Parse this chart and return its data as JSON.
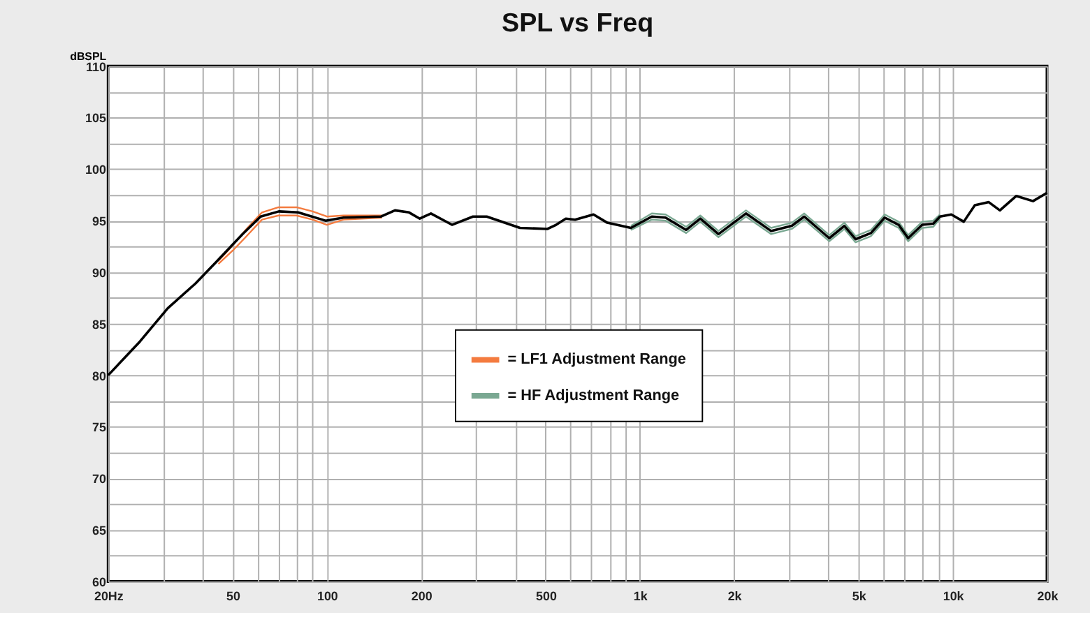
{
  "chart_data": {
    "type": "line",
    "title": "SPL vs Freq",
    "ylabel": "dBSPL",
    "xlim": [
      20,
      20000
    ],
    "ylim": [
      60,
      110
    ],
    "log": "x",
    "grid": true,
    "legend": "center",
    "line_style": "solid",
    "marker": "none",
    "xticks": [
      {
        "value": 20,
        "label": "20Hz"
      },
      {
        "value": 30,
        "label": null
      },
      {
        "value": 40,
        "label": null
      },
      50,
      {
        "value": 60,
        "label": null
      },
      {
        "value": 70,
        "label": null
      },
      {
        "value": 80,
        "label": null
      },
      {
        "value": 90,
        "label": null
      },
      100,
      200,
      {
        "value": 300,
        "label": null
      },
      {
        "value": 400,
        "label": null
      },
      500,
      {
        "value": 600,
        "label": null
      },
      {
        "value": 700,
        "label": null
      },
      {
        "value": 800,
        "label": null
      },
      {
        "value": 900,
        "label": null
      },
      {
        "value": 1000,
        "label": "1k"
      },
      {
        "value": 2000,
        "label": "2k"
      },
      {
        "value": 3000,
        "label": null
      },
      {
        "value": 4000,
        "label": null
      },
      {
        "value": 5000,
        "label": "5k"
      },
      {
        "value": 6000,
        "label": null
      },
      {
        "value": 7000,
        "label": null
      },
      {
        "value": 8000,
        "label": null
      },
      {
        "value": 9000,
        "label": null
      },
      {
        "value": 10000,
        "label": "10k"
      },
      {
        "value": 20000,
        "label": "20k"
      }
    ],
    "yticks": [
      60,
      {
        "value": 62.5,
        "label": null
      },
      65,
      {
        "value": 67.5,
        "label": null
      },
      70,
      {
        "value": 72.5,
        "label": null
      },
      75,
      {
        "value": 77.5,
        "label": null
      },
      80,
      {
        "value": 82.5,
        "label": null
      },
      85,
      {
        "value": 87.5,
        "label": null
      },
      90,
      {
        "value": 92.5,
        "label": null
      },
      95,
      {
        "value": 97.5,
        "label": null
      },
      100,
      {
        "value": 102.5,
        "label": null
      },
      105,
      {
        "value": 107.5,
        "label": null
      },
      110
    ],
    "series": [
      {
        "name": "= LF1 Adjustment Range",
        "color": "#f47b3f",
        "x": [
          45,
          50,
          55,
          62,
          70,
          80,
          90,
          100,
          113,
          150
        ],
        "values": [
          91.1,
          92.6,
          94.1,
          95.8,
          96.3,
          96.3,
          95.9,
          95.4,
          95.5,
          95.5
        ]
      },
      {
        "color": "#f47b3f",
        "x": [
          45,
          50,
          55,
          62,
          70,
          80,
          90,
          100,
          113,
          150
        ],
        "values": [
          90.8,
          92.1,
          93.4,
          95.1,
          95.5,
          95.5,
          95.1,
          94.6,
          95.1,
          95.3
        ]
      },
      {
        "name": "= HF Adjustment Range",
        "color": "#7aa892",
        "x": [
          936,
          1092,
          1208,
          1406,
          1560,
          1783,
          2183,
          2625,
          3058,
          3352,
          4030,
          4502,
          4890,
          5474,
          6058,
          6711,
          7200,
          7985,
          8660,
          9100
        ],
        "values": [
          94.5,
          95.7,
          95.6,
          94.4,
          95.5,
          94.0,
          96.0,
          94.3,
          94.8,
          95.7,
          93.6,
          94.8,
          93.5,
          94.1,
          95.6,
          94.9,
          93.6,
          94.9,
          95.0,
          95.6
        ]
      },
      {
        "color": "#7aa892",
        "x": [
          936,
          1092,
          1208,
          1406,
          1560,
          1783,
          2183,
          2625,
          3058,
          3352,
          4030,
          4502,
          4890,
          5474,
          6058,
          6711,
          7200,
          7985,
          8660,
          9100
        ],
        "values": [
          94.1,
          95.1,
          95.0,
          93.8,
          94.9,
          93.4,
          95.4,
          93.7,
          94.2,
          95.1,
          93.0,
          94.2,
          92.9,
          93.5,
          95.0,
          94.3,
          93.0,
          94.3,
          94.4,
          95.2
        ]
      },
      {
        "color": "#000000",
        "x": [
          20,
          25.3,
          31,
          38,
          44.3,
          53.8,
          61.4,
          70.2,
          80.9,
          99,
          113,
          149,
          165,
          183,
          198,
          215,
          251,
          293,
          324,
          414,
          507,
          540,
          580,
          621,
          711,
          787,
          936,
          1092,
          1208,
          1406,
          1560,
          1783,
          2183,
          2625,
          3058,
          3352,
          4030,
          4502,
          4890,
          5474,
          6058,
          6711,
          7200,
          7985,
          8660,
          9100,
          9890,
          10840,
          11760,
          13030,
          14140,
          15960,
          18040,
          20000
        ],
        "values": [
          80.0,
          83.3,
          86.5,
          88.9,
          91.0,
          93.7,
          95.4,
          95.9,
          95.8,
          95.0,
          95.3,
          95.4,
          96.0,
          95.8,
          95.2,
          95.7,
          94.6,
          95.4,
          95.4,
          94.3,
          94.2,
          94.6,
          95.2,
          95.1,
          95.6,
          94.8,
          94.3,
          95.4,
          95.3,
          94.1,
          95.2,
          93.7,
          95.7,
          94.0,
          94.5,
          95.4,
          93.3,
          94.5,
          93.2,
          93.8,
          95.3,
          94.6,
          93.3,
          94.6,
          94.7,
          95.4,
          95.6,
          94.9,
          96.5,
          96.8,
          96.0,
          97.4,
          96.9,
          97.7
        ]
      }
    ]
  }
}
